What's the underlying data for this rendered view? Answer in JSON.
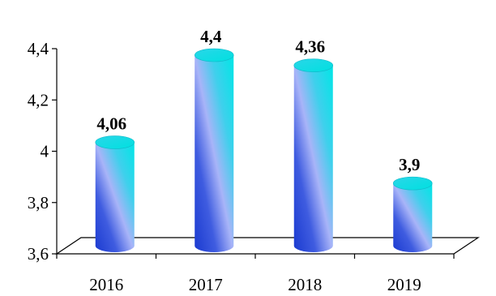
{
  "chart_data": {
    "type": "bar",
    "style": "3d-cylinder",
    "categories": [
      "2016",
      "2017",
      "2018",
      "2019"
    ],
    "series": [
      {
        "values": [
          4.06,
          4.4,
          4.36,
          3.9
        ]
      }
    ],
    "data_labels": [
      "4,06",
      "4,4",
      "4,36",
      "3,9"
    ],
    "y_ticks": [
      3.6,
      3.8,
      4.0,
      4.2,
      4.4
    ],
    "y_tick_labels": [
      "3,6",
      "3,8",
      "4",
      "4,2",
      "4,4"
    ],
    "ylim": [
      3.6,
      4.4
    ],
    "title": "",
    "xlabel": "",
    "ylabel": "",
    "grid": false,
    "legend": "none",
    "colors": {
      "cylinder_light": "#00e0e0",
      "cylinder_mid": "#9aa8f5",
      "cylinder_dark": "#1a3ad0",
      "axis": "#000000"
    }
  }
}
